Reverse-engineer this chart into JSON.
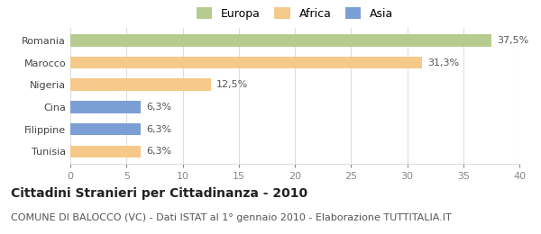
{
  "categories": [
    "Tunisia",
    "Filippine",
    "Cina",
    "Nigeria",
    "Marocco",
    "Romania"
  ],
  "values": [
    6.3,
    6.3,
    6.3,
    12.5,
    31.3,
    37.5
  ],
  "labels": [
    "6,3%",
    "6,3%",
    "6,3%",
    "12,5%",
    "31,3%",
    "37,5%"
  ],
  "colors": [
    "#f5c98a",
    "#7b9fd4",
    "#7b9fd4",
    "#f5c98a",
    "#f5c98a",
    "#b5cc8e"
  ],
  "legend_items": [
    {
      "label": "Europa",
      "color": "#b5cc8e"
    },
    {
      "label": "Africa",
      "color": "#f5c98a"
    },
    {
      "label": "Asia",
      "color": "#7b9fd4"
    }
  ],
  "xlim": [
    0,
    40
  ],
  "xticks": [
    0,
    5,
    10,
    15,
    20,
    25,
    30,
    35,
    40
  ],
  "title": "Cittadini Stranieri per Cittadinanza - 2010",
  "subtitle": "COMUNE DI BALOCCO (VC) - Dati ISTAT al 1° gennaio 2010 - Elaborazione TUTTITALIA.IT",
  "title_fontsize": 10,
  "subtitle_fontsize": 8,
  "label_fontsize": 8,
  "tick_fontsize": 8,
  "legend_fontsize": 9,
  "background_color": "#ffffff",
  "bar_height": 0.55,
  "grid_color": "#dddddd"
}
